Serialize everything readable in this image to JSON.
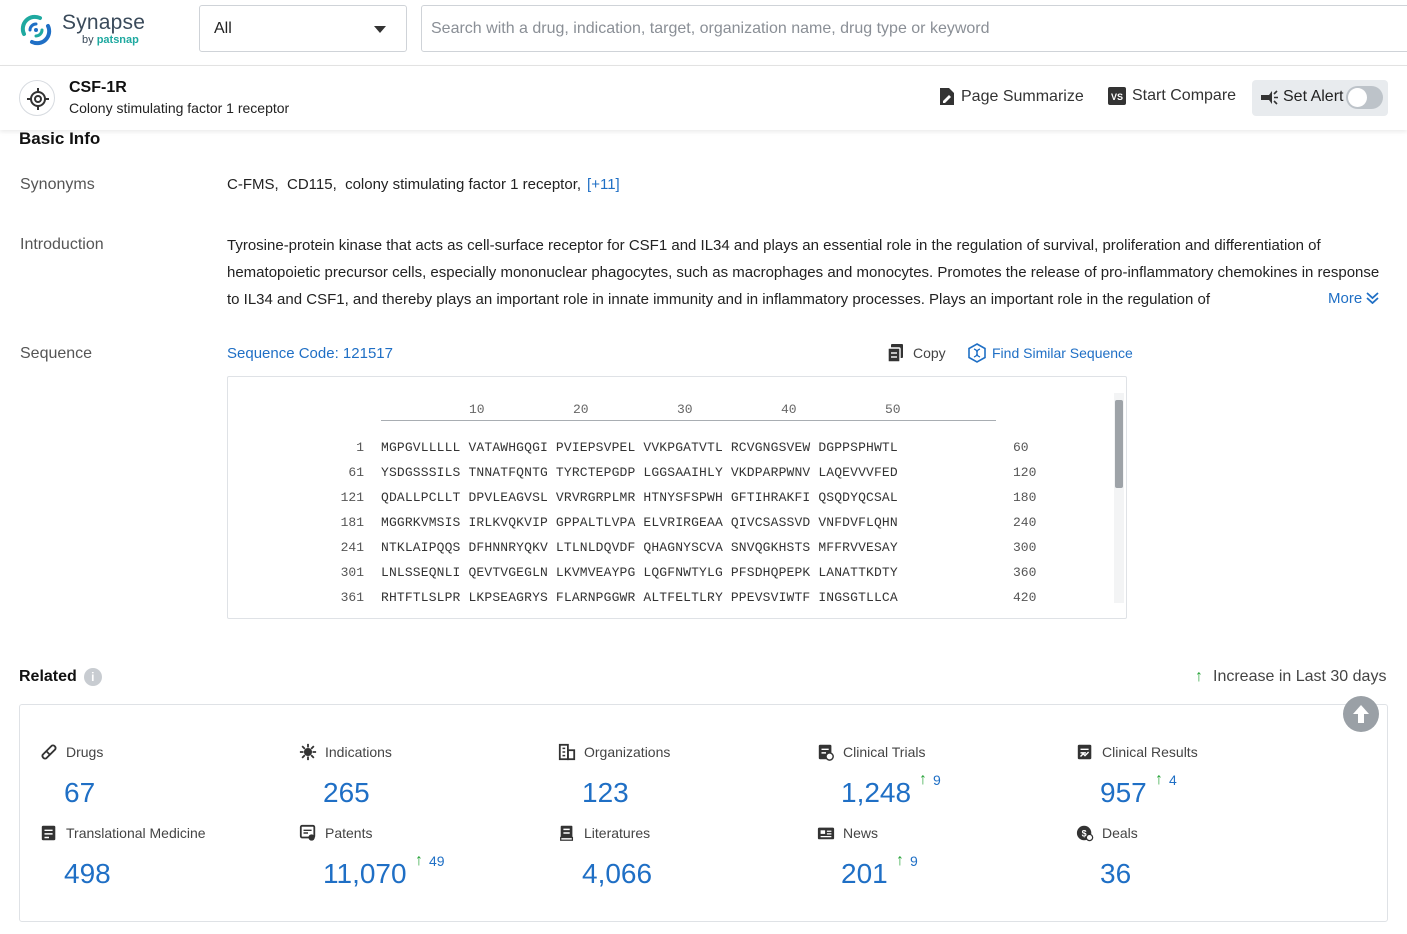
{
  "app": {
    "name": "Synapse",
    "by_prefix": "by",
    "by_brand": "patsnap"
  },
  "search": {
    "filter_value": "All",
    "placeholder": "Search with a drug, indication, target, organization name, drug type or keyword",
    "value": ""
  },
  "header": {
    "title": "CSF-1R",
    "subtitle": "Colony stimulating factor 1 receptor",
    "page_summarize": "Page Summarize",
    "start_compare": "Start Compare",
    "set_alert": "Set Alert",
    "set_alert_on": false
  },
  "basic_info": {
    "title": "Basic Info",
    "synonyms_label": "Synonyms",
    "synonyms": "C-FMS,  CD115,  colony stimulating factor 1 receptor,",
    "synonyms_more": "[+11]",
    "introduction_label": "Introduction",
    "introduction": "Tyrosine-protein kinase that acts as cell-surface receptor for CSF1 and IL34 and plays an essential role in the regulation of survival, proliferation and differentiation of hematopoietic precursor cells, especially mononuclear phagocytes, such as macrophages and monocytes. Promotes the release of pro-inflammatory chemokines in response to IL34 and CSF1, and thereby plays an important role in innate immunity and in inflammatory processes. Plays an important role in the regulation of",
    "introduction_more": "More",
    "sequence_label": "Sequence",
    "sequence_code": "Sequence Code: 121517",
    "copy": "Copy",
    "find_similar": "Find Similar Sequence",
    "ruler": [
      "10",
      "20",
      "30",
      "40",
      "50"
    ],
    "sequence_rows": [
      {
        "start": "1",
        "seq": "MGPGVLLLLL VATAWHGQGI PVIEPSVPEL VVKPGATVTL RCVGNGSVEW DGPPSPHWTL",
        "end": "60"
      },
      {
        "start": "61",
        "seq": "YSDGSSSILS TNNATFQNTG TYRCTEPGDP LGGSAAIHLY VKDPARPWNV LAQEVVVFED",
        "end": "120"
      },
      {
        "start": "121",
        "seq": "QDALLPCLLT DPVLEAGVSL VRVRGRPLMR HTNYSFSPWH GFTIHRAKFI QSQDYQCSAL",
        "end": "180"
      },
      {
        "start": "181",
        "seq": "MGGRKVMSIS IRLKVQKVIP GPPALTLVPA ELVRIRGEAA QIVCSASSVD VNFDVFLQHN",
        "end": "240"
      },
      {
        "start": "241",
        "seq": "NTKLAIPQQS DFHNNRYQKV LTLNLDQVDF QHAGNYSCVA SNVQGKHSTS MFFRVVESAY",
        "end": "300"
      },
      {
        "start": "301",
        "seq": "LNLSSEQNLI QEVTVGEGLN LKVMVEAYPG LQGFNWTYLG PFSDHQPEPK LANATTKDTY",
        "end": "360"
      },
      {
        "start": "361",
        "seq": "RHTFTLSLPR LKPSEAGRYS FLARNPGGWR ALTFELTLRY PPEVSVIWTF INGSGTLLCA",
        "end": "420"
      }
    ]
  },
  "related": {
    "title": "Related",
    "increase_label": "Increase in Last 30 days",
    "stats": [
      {
        "label": "Drugs",
        "value": "67",
        "inc": ""
      },
      {
        "label": "Indications",
        "value": "265",
        "inc": ""
      },
      {
        "label": "Organizations",
        "value": "123",
        "inc": ""
      },
      {
        "label": "Clinical Trials",
        "value": "1,248",
        "inc": "9"
      },
      {
        "label": "Clinical Results",
        "value": "957",
        "inc": "4"
      },
      {
        "label": "Translational Medicine",
        "value": "498",
        "inc": ""
      },
      {
        "label": "Patents",
        "value": "11,070",
        "inc": "49"
      },
      {
        "label": "Literatures",
        "value": "4,066",
        "inc": ""
      },
      {
        "label": "News",
        "value": "201",
        "inc": "9"
      },
      {
        "label": "Deals",
        "value": "36",
        "inc": ""
      }
    ]
  },
  "colors": {
    "accent": "#1f6fc5",
    "increase": "#2aa43b",
    "brand": "#1fa9a0"
  }
}
